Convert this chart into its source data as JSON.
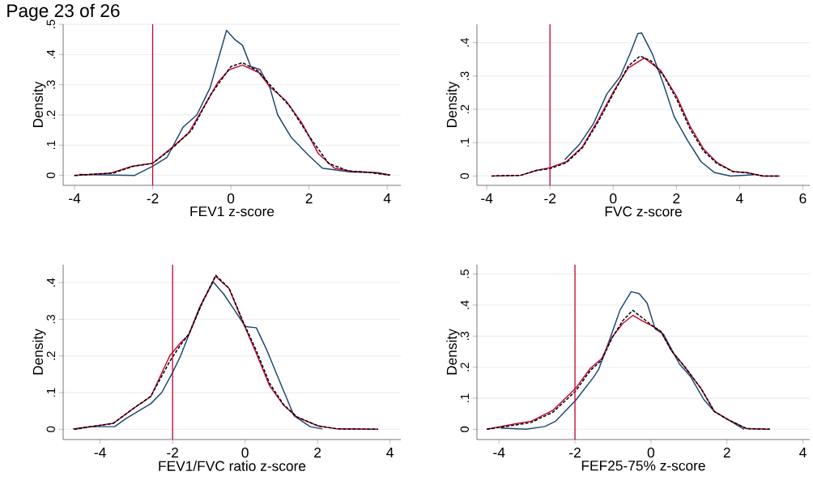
{
  "chart_data": [
    {
      "type": "line",
      "xlabel": "FEV1 z-score",
      "ylabel": "Density",
      "xlim": [
        -4.29,
        4.35
      ],
      "ylim": [
        -0.033,
        0.5
      ],
      "xticks": [
        -4,
        -2,
        0,
        2,
        4
      ],
      "yticks": [
        0,
        {
          "value": 0.1,
          "label": ".1"
        },
        {
          "value": 0.2,
          "label": ".2"
        },
        {
          "value": 0.3,
          "label": ".3"
        },
        {
          "value": 0.4,
          "label": ".4"
        },
        {
          "value": 0.5,
          "label": ".5"
        }
      ],
      "grid": "y",
      "annotations": [
        "Page 23 of 26"
      ],
      "ref_lines": [
        {
          "axis": "x",
          "value": -2,
          "color": "#c10534"
        }
      ],
      "series": [
        {
          "color": "#1a476f",
          "x": [
            -3.88,
            -2.46,
            -2,
            -1.63,
            -1.22,
            -0.87,
            -0.53,
            -0.11,
            0.1,
            0.3,
            0.51,
            0.75,
            1.0,
            1.2,
            1.55,
            1.96,
            2.34,
            2.72,
            3.07,
            3.76,
            4.07
          ],
          "values": [
            0.003,
            0,
            0.03,
            0.06,
            0.16,
            0.2,
            0.29,
            0.48,
            0.45,
            0.43,
            0.36,
            0.35,
            0.29,
            0.2,
            0.125,
            0.07,
            0.024,
            0.017,
            0.011,
            0.009,
            0.001
          ]
        },
        {
          "color": "#000000",
          "line_style": "dashed",
          "x": [
            -4,
            -3,
            -2.5,
            -2,
            -1.5,
            -1,
            -0.5,
            0,
            0.3,
            0.7,
            1,
            1.5,
            2,
            2.5,
            3,
            3.5,
            4.07
          ],
          "values": [
            0,
            0.008,
            0.03,
            0.04,
            0.09,
            0.15,
            0.27,
            0.36,
            0.373,
            0.345,
            0.3,
            0.23,
            0.13,
            0.04,
            0.015,
            0.01,
            0.001
          ]
        },
        {
          "color": "#c10534",
          "x": [
            -4.01,
            -3.08,
            -2.53,
            -2,
            -1.49,
            -1.08,
            -0.66,
            -0.32,
            -0.04,
            0.3,
            0.72,
            1.0,
            1.41,
            1.82,
            2.24,
            2.65,
            3.07,
            3.62,
            4.07
          ],
          "values": [
            0,
            0.007,
            0.03,
            0.04,
            0.094,
            0.14,
            0.234,
            0.31,
            0.35,
            0.365,
            0.34,
            0.293,
            0.247,
            0.173,
            0.072,
            0.024,
            0.014,
            0.01,
            0.001
          ]
        }
      ]
    },
    {
      "type": "line",
      "xlabel": "FVC z-score",
      "ylabel": "Density",
      "xlim": [
        -4.31,
        6.22
      ],
      "ylim": [
        -0.028,
        0.455
      ],
      "xticks": [
        -4,
        -2,
        0,
        2,
        4,
        6
      ],
      "yticks": [
        0,
        {
          "value": 0.1,
          "label": ".1"
        },
        {
          "value": 0.2,
          "label": ".2"
        },
        {
          "value": 0.3,
          "label": ".3"
        },
        {
          "value": 0.4,
          "label": ".4"
        }
      ],
      "grid": "y",
      "ref_lines": [
        {
          "axis": "x",
          "value": -2,
          "color": "#c10534"
        }
      ],
      "series": [
        {
          "color": "#1a476f",
          "x": [
            -1.53,
            -1.06,
            -0.63,
            -0.2,
            0.22,
            0.56,
            0.78,
            0.9,
            1.24,
            1.59,
            1.93,
            2.35,
            2.78,
            3.21,
            3.72,
            4.48
          ],
          "values": [
            0.049,
            0.096,
            0.156,
            0.246,
            0.298,
            0.373,
            0.427,
            0.429,
            0.366,
            0.276,
            0.178,
            0.107,
            0.043,
            0.01,
            0,
            0.004
          ]
        },
        {
          "color": "#000000",
          "line_style": "dashed",
          "x": [
            -3.85,
            -2.93,
            -2.42,
            -2,
            -1.48,
            -0.97,
            -0.46,
            0.05,
            0.48,
            0.85,
            1.2,
            1.6,
            2.01,
            2.44,
            2.86,
            3.29,
            3.8,
            4.23,
            4.74,
            5.27
          ],
          "values": [
            0,
            0.002,
            0.017,
            0.022,
            0.04,
            0.085,
            0.165,
            0.255,
            0.33,
            0.36,
            0.345,
            0.3,
            0.23,
            0.14,
            0.075,
            0.037,
            0.013,
            0.01,
            0,
            0
          ]
        },
        {
          "color": "#c10534",
          "x": [
            -3.85,
            -2.93,
            -2.42,
            -2,
            -1.48,
            -0.97,
            -0.46,
            0.05,
            0.48,
            0.99,
            1.5,
            2.01,
            2.44,
            2.86,
            3.29,
            3.8,
            4.23,
            4.74,
            5.27
          ],
          "values": [
            0,
            0.002,
            0.017,
            0.025,
            0.043,
            0.088,
            0.171,
            0.26,
            0.324,
            0.354,
            0.317,
            0.238,
            0.148,
            0.081,
            0.04,
            0.013,
            0.01,
            0,
            0
          ]
        }
      ]
    },
    {
      "type": "line",
      "xlabel": "FEV1/FVC ratio z-score",
      "ylabel": "Density",
      "xlim": [
        -5.02,
        4.3
      ],
      "ylim": [
        -0.028,
        0.449
      ],
      "xticks": [
        -4,
        -2,
        0,
        2,
        4
      ],
      "yticks": [
        0,
        {
          "value": 0.1,
          "label": ".1"
        },
        {
          "value": 0.2,
          "label": ".2"
        },
        {
          "value": 0.3,
          "label": ".3"
        },
        {
          "value": 0.4,
          "label": ".4"
        }
      ],
      "grid": "y",
      "ref_lines": [
        {
          "axis": "x",
          "value": -2,
          "color": "#c10534"
        }
      ],
      "series": [
        {
          "color": "#1a476f",
          "x": [
            -4.75,
            -4.31,
            -3.6,
            -3.27,
            -2.6,
            -2.3,
            -2,
            -1.78,
            -1.55,
            -1.26,
            -0.88,
            -0.59,
            -0.29,
            0.01,
            0.31,
            0.61,
            0.98,
            1.35,
            1.8,
            2.14
          ],
          "values": [
            0.001,
            0.007,
            0.007,
            0.03,
            0.07,
            0.1,
            0.155,
            0.2,
            0.258,
            0.332,
            0.402,
            0.369,
            0.325,
            0.28,
            0.277,
            0.214,
            0.125,
            0.037,
            0.007,
            0.001
          ]
        },
        {
          "color": "#000000",
          "line_style": "dashed",
          "x": [
            -4.72,
            -3.64,
            -3.05,
            -2.6,
            -2.08,
            -1.78,
            -1.55,
            -1.18,
            -0.81,
            -0.44,
            -0.06,
            0.31,
            0.68,
            1.06,
            1.43,
            2.02,
            2.55,
            3.67
          ],
          "values": [
            0,
            0.016,
            0.059,
            0.09,
            0.185,
            0.23,
            0.26,
            0.345,
            0.42,
            0.385,
            0.295,
            0.215,
            0.125,
            0.068,
            0.034,
            0.009,
            0.001,
            0
          ]
        },
        {
          "color": "#c10534",
          "x": [
            -4.72,
            -3.64,
            -3.05,
            -2.6,
            -2.08,
            -1.78,
            -1.55,
            -1.18,
            -0.81,
            -0.44,
            -0.06,
            0.31,
            0.68,
            1.06,
            1.43,
            2.02,
            2.55,
            3.67
          ],
          "values": [
            0,
            0.016,
            0.059,
            0.089,
            0.2,
            0.236,
            0.258,
            0.347,
            0.417,
            0.384,
            0.292,
            0.207,
            0.118,
            0.066,
            0.033,
            0.009,
            0.001,
            0
          ]
        }
      ]
    },
    {
      "type": "line",
      "xlabel": "FEF25-75% z-score",
      "ylabel": "Density",
      "xlim": [
        -4.58,
        4.18
      ],
      "ylim": [
        -0.033,
        0.53
      ],
      "xticks": [
        -4,
        -2,
        0,
        2,
        4
      ],
      "yticks": [
        0,
        {
          "value": 0.1,
          "label": ".1"
        },
        {
          "value": 0.2,
          "label": ".2"
        },
        {
          "value": 0.3,
          "label": ".3"
        },
        {
          "value": 0.4,
          "label": ".4"
        },
        {
          "value": 0.5,
          "label": ".5"
        }
      ],
      "grid": "y",
      "ref_lines": [
        {
          "axis": "x",
          "value": -2,
          "color": "#c10534"
        }
      ],
      "series": [
        {
          "color": "#1a476f",
          "x": [
            -3.96,
            -3.29,
            -2.79,
            -2.51,
            -1.99,
            -1.52,
            -1.38,
            -1.09,
            -0.81,
            -0.52,
            -0.31,
            -0.1,
            0.11,
            0.33,
            0.75,
            1.04,
            1.39,
            1.67,
            2.03,
            2.45
          ],
          "values": [
            0.004,
            0,
            0.009,
            0.026,
            0.092,
            0.166,
            0.192,
            0.288,
            0.385,
            0.443,
            0.437,
            0.406,
            0.323,
            0.306,
            0.21,
            0.17,
            0.096,
            0.057,
            0.031,
            0
          ]
        },
        {
          "color": "#000000",
          "line_style": "dashed",
          "x": [
            -4.32,
            -3.5,
            -3.15,
            -2.58,
            -1.99,
            -1.59,
            -1.3,
            -1.02,
            -0.74,
            -0.48,
            -0.24,
            0.04,
            0.26,
            0.54,
            0.89,
            1.32,
            1.67,
            2.03,
            2.52,
            3.13
          ],
          "values": [
            0,
            0.015,
            0.022,
            0.055,
            0.122,
            0.19,
            0.222,
            0.295,
            0.35,
            0.383,
            0.36,
            0.333,
            0.315,
            0.253,
            0.201,
            0.131,
            0.057,
            0.031,
            0.002,
            0
          ]
        },
        {
          "color": "#c10534",
          "x": [
            -4.32,
            -3.5,
            -3.15,
            -2.58,
            -1.99,
            -1.59,
            -1.3,
            -1.02,
            -0.74,
            -0.47,
            -0.24,
            0.04,
            0.26,
            0.54,
            0.89,
            1.32,
            1.67,
            2.03,
            2.52,
            3.13
          ],
          "values": [
            0,
            0.019,
            0.026,
            0.061,
            0.131,
            0.197,
            0.227,
            0.297,
            0.341,
            0.367,
            0.35,
            0.332,
            0.315,
            0.253,
            0.201,
            0.131,
            0.057,
            0.031,
            0.002,
            0
          ]
        }
      ]
    }
  ]
}
